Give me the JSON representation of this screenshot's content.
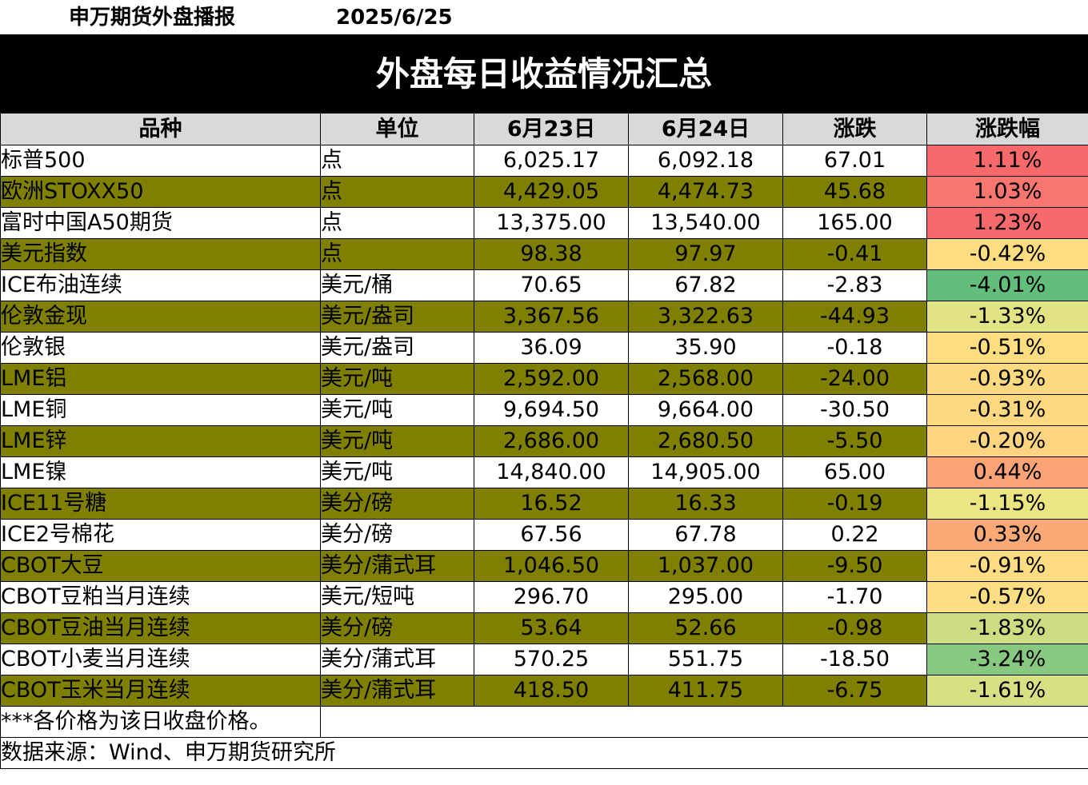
{
  "header": {
    "org": "申万期货外盘播报",
    "date": "2025/6/25"
  },
  "banner": {
    "title": "外盘每日收益情况汇总"
  },
  "table": {
    "columns": [
      "品种",
      "单位",
      "6月23日",
      "6月24日",
      "涨跌",
      "涨跌幅"
    ],
    "rows": [
      {
        "name": "标普500",
        "unit": "点",
        "d1": "6,025.17",
        "d2": "6,092.18",
        "chg": "67.01",
        "pct": "1.11%",
        "color": "#f8696b",
        "alt": false
      },
      {
        "name": "欧洲STOXX50",
        "unit": "点",
        "d1": "4,429.05",
        "d2": "4,474.73",
        "chg": "45.68",
        "pct": "1.03%",
        "color": "#f8766d",
        "alt": true
      },
      {
        "name": "富时中国A50期货",
        "unit": "点",
        "d1": "13,375.00",
        "d2": "13,540.00",
        "chg": "165.00",
        "pct": "1.23%",
        "color": "#f8696b",
        "alt": false
      },
      {
        "name": "美元指数",
        "unit": "点",
        "d1": "98.38",
        "d2": "97.97",
        "chg": "-0.41",
        "pct": "-0.42%",
        "color": "#fedd81",
        "alt": true
      },
      {
        "name": "ICE布油连续",
        "unit": "美元/桶",
        "d1": "70.65",
        "d2": "67.82",
        "chg": "-2.83",
        "pct": "-4.01%",
        "color": "#63be7b",
        "alt": false
      },
      {
        "name": "伦敦金现",
        "unit": "美元/盎司",
        "d1": "3,367.56",
        "d2": "3,322.63",
        "chg": "-44.93",
        "pct": "-1.33%",
        "color": "#e2e383",
        "alt": true
      },
      {
        "name": "伦敦银",
        "unit": "美元/盎司",
        "d1": "36.09",
        "d2": "35.90",
        "chg": "-0.18",
        "pct": "-0.51%",
        "color": "#fedd81",
        "alt": false
      },
      {
        "name": "LME铝",
        "unit": "美元/吨",
        "d1": "2,592.00",
        "d2": "2,568.00",
        "chg": "-24.00",
        "pct": "-0.93%",
        "color": "#fdd97f",
        "alt": true
      },
      {
        "name": "LME铜",
        "unit": "美元/吨",
        "d1": "9,694.50",
        "d2": "9,664.00",
        "chg": "-30.50",
        "pct": "-0.31%",
        "color": "#fed880",
        "alt": false
      },
      {
        "name": "LME锌",
        "unit": "美元/吨",
        "d1": "2,686.00",
        "d2": "2,680.50",
        "chg": "-5.50",
        "pct": "-0.20%",
        "color": "#fdd47f",
        "alt": true
      },
      {
        "name": "LME镍",
        "unit": "美元/吨",
        "d1": "14,840.00",
        "d2": "14,905.00",
        "chg": "65.00",
        "pct": "0.44%",
        "color": "#fba276",
        "alt": false
      },
      {
        "name": "ICE11号糖",
        "unit": "美分/磅",
        "d1": "16.52",
        "d2": "16.33",
        "chg": "-0.19",
        "pct": "-1.15%",
        "color": "#ebe582",
        "alt": true
      },
      {
        "name": "ICE2号棉花",
        "unit": "美分/磅",
        "d1": "67.56",
        "d2": "67.78",
        "chg": "0.22",
        "pct": "0.33%",
        "color": "#fbaa77",
        "alt": false
      },
      {
        "name": "CBOT大豆",
        "unit": "美分/蒲式耳",
        "d1": "1,046.50",
        "d2": "1,037.00",
        "chg": "-9.50",
        "pct": "-0.91%",
        "color": "#fedc81",
        "alt": true
      },
      {
        "name": "CBOT豆粕当月连续",
        "unit": "美元/短吨",
        "d1": "296.70",
        "d2": "295.00",
        "chg": "-1.70",
        "pct": "-0.57%",
        "color": "#fede82",
        "alt": false
      },
      {
        "name": "CBOT豆油当月连续",
        "unit": "美分/磅",
        "d1": "53.64",
        "d2": "52.66",
        "chg": "-0.98",
        "pct": "-1.83%",
        "color": "#cddd82",
        "alt": true
      },
      {
        "name": "CBOT小麦当月连续",
        "unit": "美分/蒲式耳",
        "d1": "570.25",
        "d2": "551.75",
        "chg": "-18.50",
        "pct": "-3.24%",
        "color": "#87c97e",
        "alt": false
      },
      {
        "name": "CBOT玉米当月连续",
        "unit": "美分/蒲式耳",
        "d1": "418.50",
        "d2": "411.75",
        "chg": "-6.75",
        "pct": "-1.61%",
        "color": "#d7e082",
        "alt": true
      }
    ]
  },
  "footer": {
    "note": "***各价格为该日收盘价格。",
    "source": "数据来源：Wind、申万期货研究所"
  }
}
